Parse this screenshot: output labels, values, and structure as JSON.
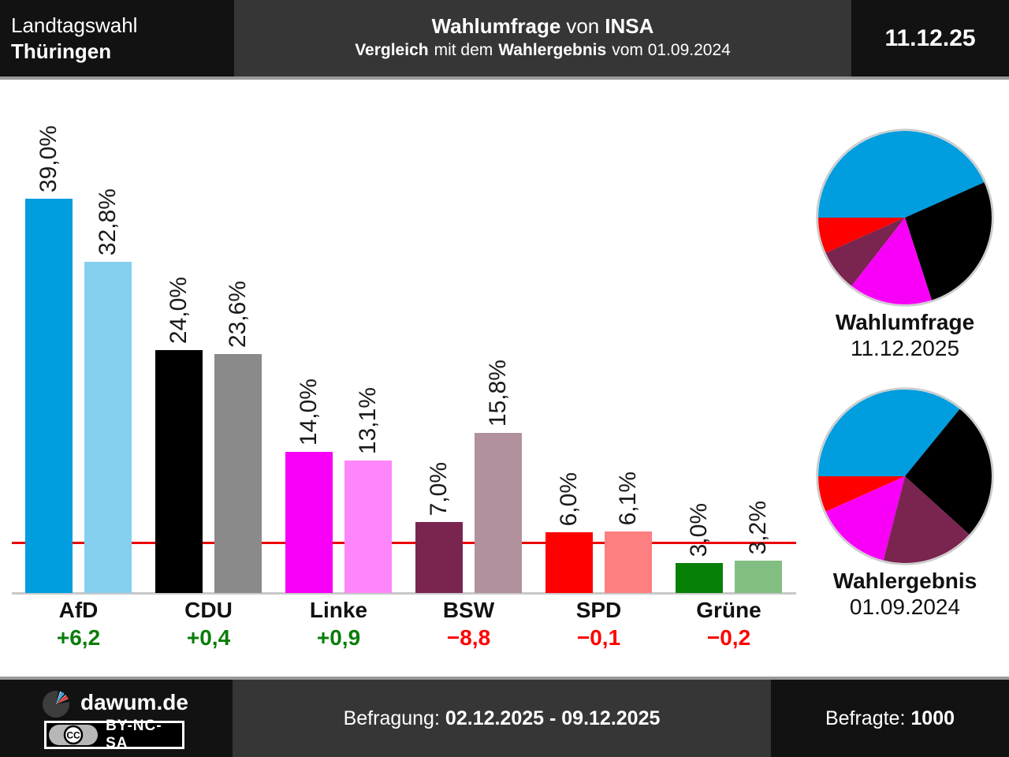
{
  "header": {
    "election_type": "Landtagswahl",
    "region": "Thüringen",
    "title": {
      "bold1": "Wahlumfrage",
      "normal1": "von",
      "bold2": "INSA"
    },
    "subtitle": {
      "bold1": "Vergleich",
      "normal1": "mit dem",
      "bold2": "Wahlergebnis",
      "normal2": "vom 01.09.2024"
    },
    "date": "11.12.25"
  },
  "chart_data": {
    "type": "bar",
    "categories": [
      "AfD",
      "CDU",
      "Linke",
      "BSW",
      "SPD",
      "Grüne"
    ],
    "series": [
      {
        "name": "Wahlumfrage 11.12.2025",
        "values": [
          39.0,
          24.0,
          14.0,
          7.0,
          6.0,
          3.0
        ]
      },
      {
        "name": "Wahlergebnis 01.09.2024",
        "values": [
          32.8,
          23.6,
          13.1,
          15.8,
          6.1,
          3.2
        ]
      }
    ],
    "value_labels": [
      [
        "39,0%",
        "32,8%"
      ],
      [
        "24,0%",
        "23,6%"
      ],
      [
        "14,0%",
        "13,1%"
      ],
      [
        "7,0%",
        "15,8%"
      ],
      [
        "6,0%",
        "6,1%"
      ],
      [
        "3,0%",
        "3,2%"
      ]
    ],
    "diffs": [
      "+6,2",
      "+0,4",
      "+0,9",
      "−8,8",
      "−0,1",
      "−0,2"
    ],
    "diff_directions": [
      "up",
      "up",
      "up",
      "down",
      "down",
      "down"
    ],
    "threshold_percent": 5,
    "ylim": [
      0,
      42
    ],
    "grid": false,
    "pies": [
      {
        "title": "Wahlumfrage",
        "date": "11.12.2025",
        "slices": [
          [
            "AfD",
            39.0
          ],
          [
            "CDU",
            24.0
          ],
          [
            "Linke",
            14.0
          ],
          [
            "BSW",
            7.0
          ],
          [
            "SPD",
            6.0
          ]
        ]
      },
      {
        "title": "Wahlergebnis",
        "date": "01.09.2024",
        "slices": [
          [
            "AfD",
            32.8
          ],
          [
            "CDU",
            23.6
          ],
          [
            "BSW",
            15.8
          ],
          [
            "Linke",
            13.1
          ],
          [
            "SPD",
            6.1
          ]
        ]
      }
    ]
  },
  "party_colors": {
    "AfD": {
      "main": "#009ddf",
      "light": "#85d0ef"
    },
    "CDU": {
      "main": "#000000",
      "light": "#8a8a8a"
    },
    "Linke": {
      "main": "#f800f8",
      "light": "#fe86fa"
    },
    "BSW": {
      "main": "#7a2450",
      "light": "#b2919e"
    },
    "SPD": {
      "main": "#fe0000",
      "light": "#fd7f7f"
    },
    "Grüne": {
      "main": "#078007",
      "light": "#82be82"
    }
  },
  "ui_colors": {
    "diff_up": "#0a7d0a",
    "diff_down": "#fe0000",
    "threshold_line": "#ed0000",
    "baseline": "#c8c8c8",
    "pie_border": "#cccccc"
  },
  "footer": {
    "brand": "dawum.de",
    "cc_label": "CC",
    "license": "BY-NC-SA",
    "survey_label": "Befragung:",
    "survey_period": "02.12.2025 - 09.12.2025",
    "respondents_label": "Befragte:",
    "respondents_value": "1000"
  }
}
